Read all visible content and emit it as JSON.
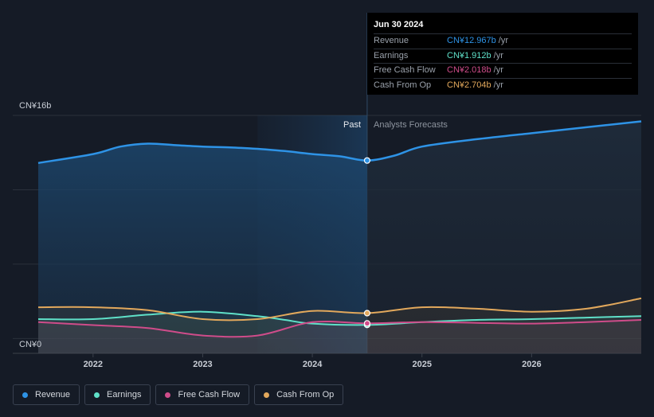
{
  "chart_data": {
    "type": "area",
    "currency": "CN¥",
    "y_top_label": "CN¥16b",
    "y_bottom_label": "CN¥0",
    "ylim": [
      0,
      16
    ],
    "xlim": [
      2021.5,
      2027.0
    ],
    "x_ticks": [
      "2022",
      "2023",
      "2024",
      "2025",
      "2026"
    ],
    "x_tick_values": [
      2022,
      2023,
      2024,
      2025,
      2026
    ],
    "past_label": "Past",
    "forecast_label": "Analysts Forecasts",
    "past_divider_x": 2024.5,
    "shaded_past_start_x": 2023.5,
    "series": [
      {
        "name": "Revenue",
        "color": "#2e93e6",
        "x": [
          2021.5,
          2022.0,
          2022.25,
          2022.5,
          2022.75,
          2023.0,
          2023.25,
          2023.5,
          2023.75,
          2024.0,
          2024.25,
          2024.5,
          2024.75,
          2025.0,
          2025.5,
          2026.0,
          2026.5,
          2027.0
        ],
        "y": [
          12.8,
          13.4,
          13.9,
          14.1,
          14.0,
          13.9,
          13.85,
          13.75,
          13.6,
          13.4,
          13.25,
          12.967,
          13.3,
          13.9,
          14.4,
          14.8,
          15.2,
          15.6
        ]
      },
      {
        "name": "Earnings",
        "color": "#5fe0c8",
        "x": [
          2021.5,
          2022.0,
          2022.5,
          2023.0,
          2023.5,
          2023.75,
          2024.0,
          2024.5,
          2025.0,
          2025.5,
          2026.0,
          2026.5,
          2027.0
        ],
        "y": [
          2.3,
          2.3,
          2.6,
          2.8,
          2.5,
          2.25,
          2.0,
          1.912,
          2.1,
          2.25,
          2.3,
          2.4,
          2.5
        ]
      },
      {
        "name": "Free Cash Flow",
        "color": "#cf4c8a",
        "x": [
          2021.5,
          2022.0,
          2022.5,
          2023.0,
          2023.5,
          2024.0,
          2024.5,
          2025.0,
          2025.5,
          2026.0,
          2026.5,
          2027.0
        ],
        "y": [
          2.1,
          1.9,
          1.7,
          1.2,
          1.2,
          2.1,
          2.018,
          2.1,
          2.05,
          2.0,
          2.1,
          2.25
        ]
      },
      {
        "name": "Cash From Op",
        "color": "#e2a85c",
        "x": [
          2021.5,
          2022.0,
          2022.5,
          2023.0,
          2023.5,
          2024.0,
          2024.5,
          2025.0,
          2025.5,
          2026.0,
          2026.5,
          2027.0
        ],
        "y": [
          3.1,
          3.1,
          2.9,
          2.3,
          2.3,
          2.85,
          2.704,
          3.1,
          3.0,
          2.8,
          3.0,
          3.7
        ]
      }
    ],
    "grid": true,
    "legend_position": "bottom-left"
  },
  "tooltip": {
    "date": "Jun 30 2024",
    "rows": [
      {
        "name": "Revenue",
        "value": "CN¥12.967b",
        "unit": "/yr",
        "color": "#2e93e6"
      },
      {
        "name": "Earnings",
        "value": "CN¥1.912b",
        "unit": "/yr",
        "color": "#5fe0c8"
      },
      {
        "name": "Free Cash Flow",
        "value": "CN¥2.018b",
        "unit": "/yr",
        "color": "#cf4c8a"
      },
      {
        "name": "Cash From Op",
        "value": "CN¥2.704b",
        "unit": "/yr",
        "color": "#e2a85c"
      }
    ]
  },
  "legend": [
    {
      "label": "Revenue",
      "color": "#2e93e6"
    },
    {
      "label": "Earnings",
      "color": "#5fe0c8"
    },
    {
      "label": "Free Cash Flow",
      "color": "#cf4c8a"
    },
    {
      "label": "Cash From Op",
      "color": "#e2a85c"
    }
  ]
}
